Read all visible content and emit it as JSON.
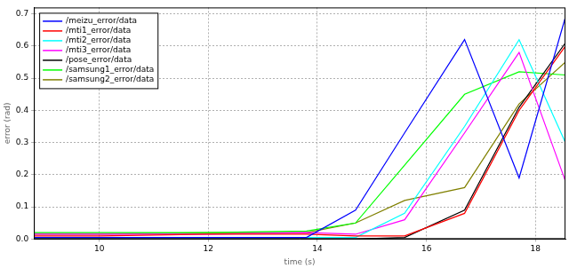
{
  "chart_data": {
    "type": "line",
    "x_label": "time (s)",
    "y_label": "error (rad)",
    "x": [
      8.8,
      10,
      12,
      13.8,
      14.7,
      15.6,
      16.7,
      17.7,
      18.55
    ],
    "series": [
      {
        "name": "/meizu_error/data",
        "color": "#0000ff",
        "values": [
          0.005,
          0.005,
          0.005,
          0.005,
          0.09,
          0.33,
          0.62,
          0.19,
          0.69
        ]
      },
      {
        "name": "/mti1_error/data",
        "color": "#ff0000",
        "values": [
          0.01,
          0.01,
          0.015,
          0.015,
          0.01,
          0.01,
          0.08,
          0.4,
          0.6
        ]
      },
      {
        "name": "/mti2_error/data",
        "color": "#00ffff",
        "values": [
          0.005,
          0.005,
          0.005,
          0.005,
          0.005,
          0.08,
          0.35,
          0.62,
          0.3
        ]
      },
      {
        "name": "/mti3_error/data",
        "color": "#ff00ff",
        "values": [
          0.015,
          0.015,
          0.015,
          0.02,
          0.015,
          0.06,
          0.33,
          0.58,
          0.18
        ]
      },
      {
        "name": "/pose_error/data",
        "color": "#000000",
        "values": [
          0,
          0,
          0,
          0,
          0,
          0.005,
          0.09,
          0.41,
          0.61
        ]
      },
      {
        "name": "/samsung1_error/data",
        "color": "#00ff00",
        "values": [
          0.02,
          0.02,
          0.02,
          0.025,
          0.05,
          0.23,
          0.45,
          0.52,
          0.51
        ]
      },
      {
        "name": "/samsung2_error/data",
        "color": "#808000",
        "values": [
          0.015,
          0.015,
          0.02,
          0.02,
          0.05,
          0.12,
          0.16,
          0.42,
          0.55
        ]
      }
    ],
    "xlim": [
      8.8,
      18.55
    ],
    "xticks": [
      10,
      12,
      14,
      16,
      18
    ],
    "ylim": [
      0,
      0.72
    ],
    "yticks": [
      {
        "value": 0,
        "label": "0.0"
      },
      {
        "value": 0.1,
        "label": "0.1"
      },
      {
        "value": 0.2,
        "label": "0.2"
      },
      {
        "value": 0.3,
        "label": "0.3"
      },
      {
        "value": 0.4,
        "label": "0.4"
      },
      {
        "value": 0.5,
        "label": "0.5"
      },
      {
        "value": 0.6,
        "label": "0.6"
      },
      {
        "value": 0.7,
        "label": "0.7"
      }
    ],
    "grid": true,
    "legend": "upper left"
  }
}
